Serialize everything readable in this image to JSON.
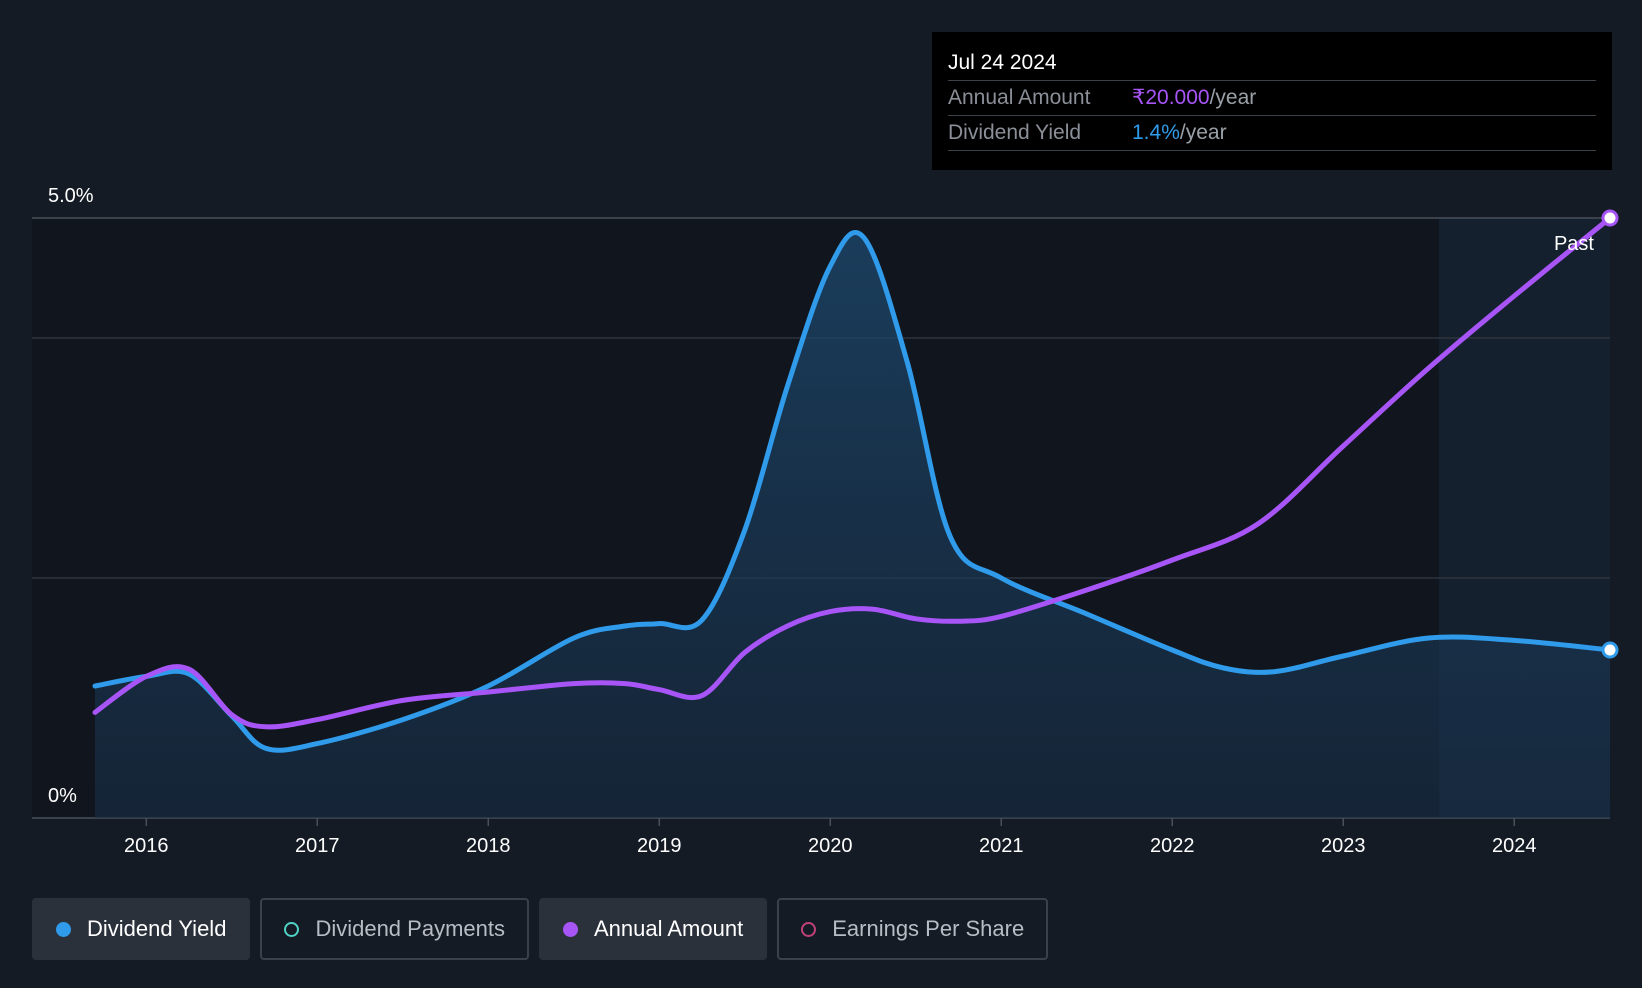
{
  "tooltip": {
    "date": "Jul 24 2024",
    "rows": [
      {
        "label": "Annual Amount",
        "value": "₹20.000",
        "unit": "/year"
      },
      {
        "label": "Dividend Yield",
        "value": "1.4%",
        "unit": "/year"
      }
    ]
  },
  "legend": {
    "items": [
      {
        "label": "Dividend Yield",
        "color": "#2f9bea",
        "filled": true,
        "active": true
      },
      {
        "label": "Dividend Payments",
        "color": "#4fd1c5",
        "filled": false,
        "active": false
      },
      {
        "label": "Annual Amount",
        "color": "#a855f7",
        "filled": true,
        "active": true
      },
      {
        "label": "Earnings Per Share",
        "color": "#c0407a",
        "filled": false,
        "active": false
      }
    ]
  },
  "chart_data": {
    "type": "line",
    "title": "",
    "xlabel": "",
    "ylabel": "",
    "y_tick_labels": [
      "0%",
      "5.0%"
    ],
    "xlim": [
      2015.7,
      2024.56
    ],
    "ylim": [
      0,
      5.0
    ],
    "x_ticks": [
      2016,
      2017,
      2018,
      2019,
      2020,
      2021,
      2022,
      2023,
      2024
    ],
    "x_tick_labels": [
      "2016",
      "2017",
      "2018",
      "2019",
      "2020",
      "2021",
      "2022",
      "2023",
      "2024"
    ],
    "gridlines": [
      2.0,
      4.0,
      5.0
    ],
    "past_region_start": 2023.56,
    "past_label": "Past",
    "series": [
      {
        "name": "Dividend Yield",
        "color": "#2f9bea",
        "filled": true,
        "points": [
          [
            2015.7,
            1.1
          ],
          [
            2016.0,
            1.18
          ],
          [
            2016.25,
            1.2
          ],
          [
            2016.5,
            0.85
          ],
          [
            2016.7,
            0.58
          ],
          [
            2017.0,
            0.62
          ],
          [
            2017.5,
            0.82
          ],
          [
            2018.0,
            1.1
          ],
          [
            2018.5,
            1.5
          ],
          [
            2018.8,
            1.6
          ],
          [
            2019.0,
            1.62
          ],
          [
            2019.25,
            1.65
          ],
          [
            2019.5,
            2.4
          ],
          [
            2019.75,
            3.6
          ],
          [
            2020.0,
            4.6
          ],
          [
            2020.2,
            4.83
          ],
          [
            2020.45,
            3.8
          ],
          [
            2020.7,
            2.35
          ],
          [
            2021.0,
            2.0
          ],
          [
            2021.5,
            1.7
          ],
          [
            2022.0,
            1.4
          ],
          [
            2022.3,
            1.25
          ],
          [
            2022.6,
            1.22
          ],
          [
            2023.0,
            1.35
          ],
          [
            2023.5,
            1.5
          ],
          [
            2024.0,
            1.48
          ],
          [
            2024.56,
            1.4
          ]
        ]
      },
      {
        "name": "Annual Amount",
        "color": "#a855f7",
        "filled": false,
        "points": [
          [
            2015.7,
            0.88
          ],
          [
            2016.0,
            1.18
          ],
          [
            2016.25,
            1.24
          ],
          [
            2016.5,
            0.86
          ],
          [
            2016.7,
            0.76
          ],
          [
            2017.0,
            0.82
          ],
          [
            2017.5,
            0.98
          ],
          [
            2018.0,
            1.05
          ],
          [
            2018.5,
            1.12
          ],
          [
            2018.8,
            1.12
          ],
          [
            2019.0,
            1.07
          ],
          [
            2019.25,
            1.02
          ],
          [
            2019.5,
            1.38
          ],
          [
            2019.75,
            1.6
          ],
          [
            2020.0,
            1.72
          ],
          [
            2020.25,
            1.74
          ],
          [
            2020.5,
            1.66
          ],
          [
            2020.75,
            1.64
          ],
          [
            2021.0,
            1.68
          ],
          [
            2021.5,
            1.9
          ],
          [
            2022.0,
            2.15
          ],
          [
            2022.5,
            2.45
          ],
          [
            2023.0,
            3.1
          ],
          [
            2023.5,
            3.75
          ],
          [
            2024.0,
            4.35
          ],
          [
            2024.56,
            5.0
          ]
        ]
      }
    ]
  }
}
